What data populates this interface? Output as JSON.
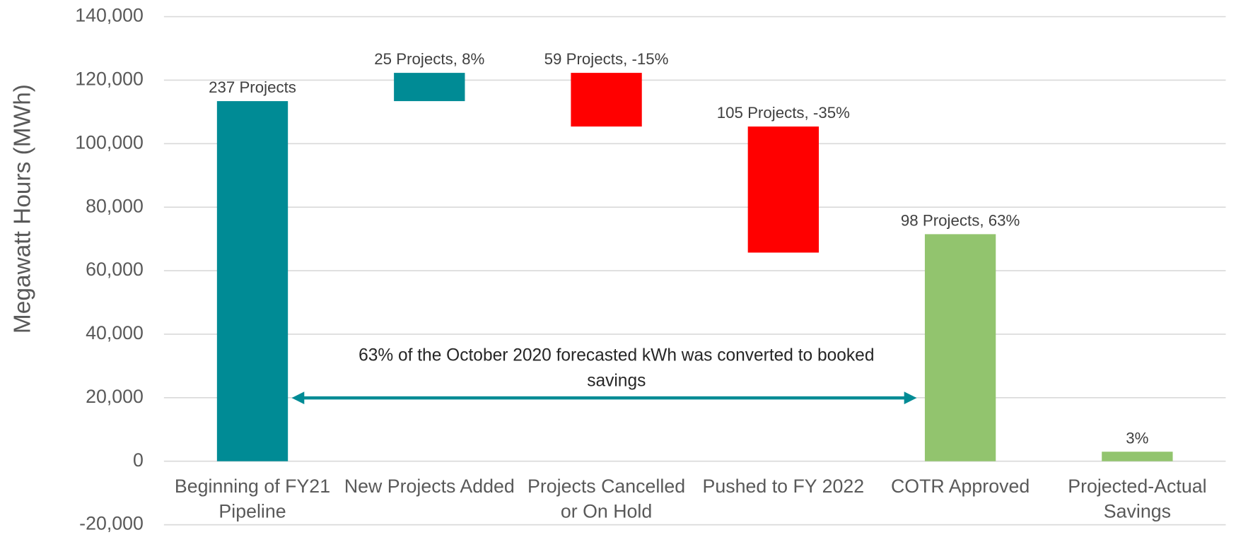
{
  "chart_data": {
    "type": "waterfall",
    "y_axis_label": "Megawatt Hours (MWh)",
    "categories": [
      "Beginning of FY21 Pipeline",
      "New Projects Added",
      "Projects Cancelled or On Hold",
      "Pushed to FY 2022",
      "COTR Approved",
      "Projected-Actual Savings"
    ],
    "values": [
      113400,
      8900,
      -16900,
      -39700,
      71500,
      3000
    ],
    "measure": [
      "absolute",
      "relative",
      "relative",
      "relative",
      "absolute",
      "absolute"
    ],
    "colors": [
      "#008b95",
      "#008b95",
      "#ff0000",
      "#ff0000",
      "#92c46e",
      "#92c46e"
    ],
    "bar_labels": [
      "237 Projects",
      "25 Projects, 8%",
      "59 Projects, -15%",
      "105 Projects, -35%",
      "98 Projects, 63%",
      "3%"
    ],
    "annotation": "63% of the October 2020 forecasted kWh was converted to booked savings",
    "annotation_color": "#008b95",
    "ylim": [
      -20000,
      140000
    ],
    "yticks": [
      {
        "value": -20000,
        "label": "-20,000"
      },
      0,
      {
        "value": 20000,
        "label": "20,000"
      },
      {
        "value": 40000,
        "label": "40,000"
      },
      {
        "value": 60000,
        "label": "60,000"
      },
      {
        "value": 80000,
        "label": "80,000"
      },
      {
        "value": 100000,
        "label": "100,000"
      },
      {
        "value": 120000,
        "label": "120,000"
      },
      {
        "value": 140000,
        "label": "140,000"
      }
    ],
    "grid": true
  }
}
